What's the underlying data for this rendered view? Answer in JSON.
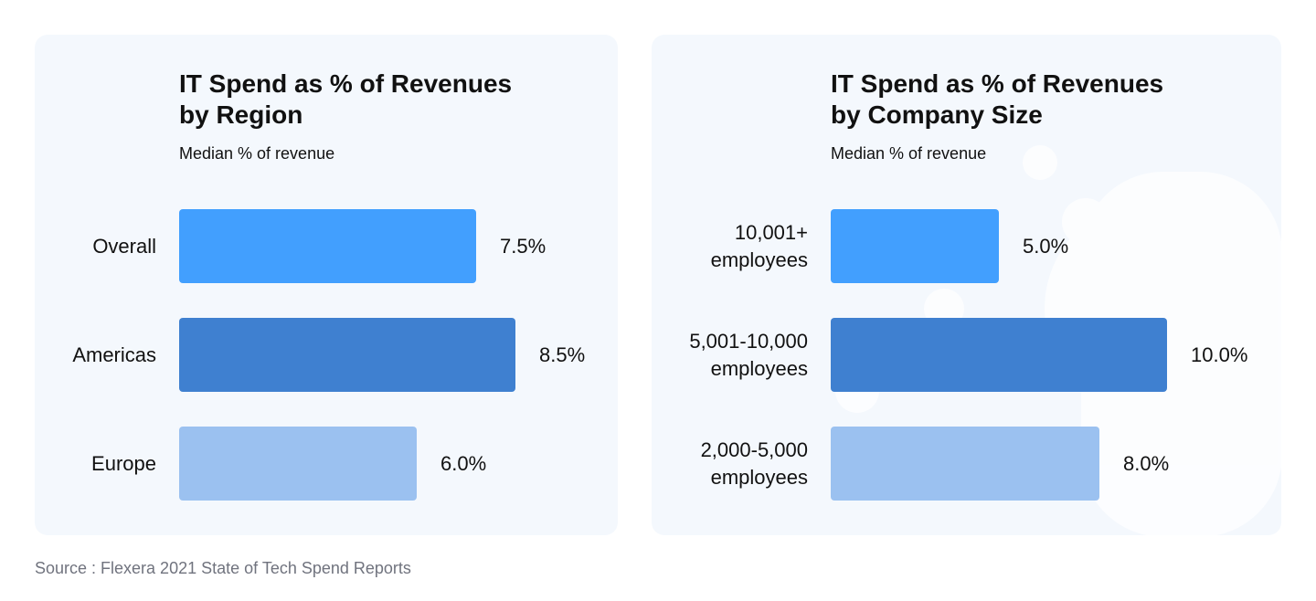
{
  "charts": {
    "region": {
      "title_line1": "IT Spend as % of Revenues",
      "title_line2": "by Region",
      "subtitle": "Median % of revenue"
    },
    "size": {
      "title_line1": "IT Spend as % of Revenues",
      "title_line2": "by Company Size",
      "subtitle": "Median % of revenue"
    }
  },
  "source": "Source : Flexera 2021 State of Tech Spend Reports",
  "colors": {
    "bar_1": "#429ffe",
    "bar_2": "#3f80d0",
    "bar_3": "#9bc1f0",
    "panel_bg": "#f4f8fd"
  },
  "chart_data": [
    {
      "type": "bar",
      "orientation": "horizontal",
      "title": "IT Spend as % of Revenues by Region",
      "subtitle": "Median % of revenue",
      "categories": [
        "Overall",
        "Americas",
        "Europe"
      ],
      "values": [
        7.5,
        8.5,
        6.0
      ],
      "value_labels": [
        "7.5%",
        "8.5%",
        "6.0%"
      ],
      "colors": [
        "#429ffe",
        "#3f80d0",
        "#9bc1f0"
      ],
      "xlim": [
        0,
        8.5
      ],
      "grid": false,
      "legend": "none"
    },
    {
      "type": "bar",
      "orientation": "horizontal",
      "title": "IT Spend as % of Revenues by Company Size",
      "subtitle": "Median % of revenue",
      "categories": [
        "10,001+ employees",
        "5,001-10,000 employees",
        "2,000-5,000 employees"
      ],
      "category_lines": [
        [
          "10,001+",
          "employees"
        ],
        [
          "5,001-10,000",
          "employees"
        ],
        [
          "2,000-5,000",
          "employees"
        ]
      ],
      "values": [
        5.0,
        10.0,
        8.0
      ],
      "value_labels": [
        "5.0%",
        "10.0%",
        "8.0%"
      ],
      "colors": [
        "#429ffe",
        "#3f80d0",
        "#9bc1f0"
      ],
      "xlim": [
        0,
        10.0
      ],
      "grid": false,
      "legend": "none"
    }
  ]
}
